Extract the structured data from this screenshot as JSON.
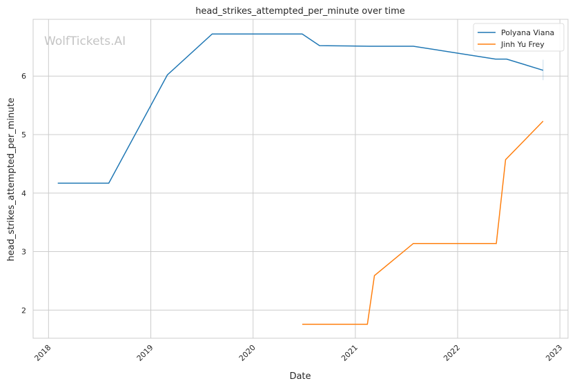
{
  "chart_data": {
    "type": "line",
    "title": "head_strikes_attempted_per_minute over time",
    "xlabel": "Date",
    "ylabel": "head_strikes_attempted_per_minute",
    "watermark": "WolfTickets.AI",
    "xlim": [
      "2017-11-07",
      "2023-01-30"
    ],
    "ylim": [
      1.52,
      6.97
    ],
    "xticks": [
      "2018",
      "2019",
      "2020",
      "2021",
      "2022",
      "2023"
    ],
    "yticks": [
      2,
      3,
      4,
      5,
      6
    ],
    "grid": true,
    "legend_position": "top-right",
    "series": [
      {
        "name": "Polyana Viana",
        "color": "#1f77b4",
        "x": [
          "2018-02-03",
          "2018-08-04",
          "2019-03-01",
          "2019-08-08",
          "2020-06-25",
          "2020-08-26",
          "2021-02-20",
          "2021-07-27",
          "2022-05-16",
          "2022-06-25",
          "2022-11-02"
        ],
        "y": [
          4.17,
          4.17,
          6.02,
          6.72,
          6.72,
          6.52,
          6.51,
          6.51,
          6.29,
          6.29,
          6.1
        ]
      },
      {
        "name": "Jinh Yu Frey",
        "color": "#ff7f0e",
        "x": [
          "2020-06-25",
          "2021-02-13",
          "2021-03-10",
          "2021-07-27",
          "2022-05-19",
          "2022-06-21",
          "2022-11-02"
        ],
        "y": [
          1.76,
          1.76,
          2.59,
          3.14,
          3.14,
          4.57,
          5.23
        ]
      }
    ],
    "band": {
      "series": "Polyana Viana",
      "x": "2022-11-02",
      "y": [
        5.93,
        6.28
      ]
    }
  }
}
